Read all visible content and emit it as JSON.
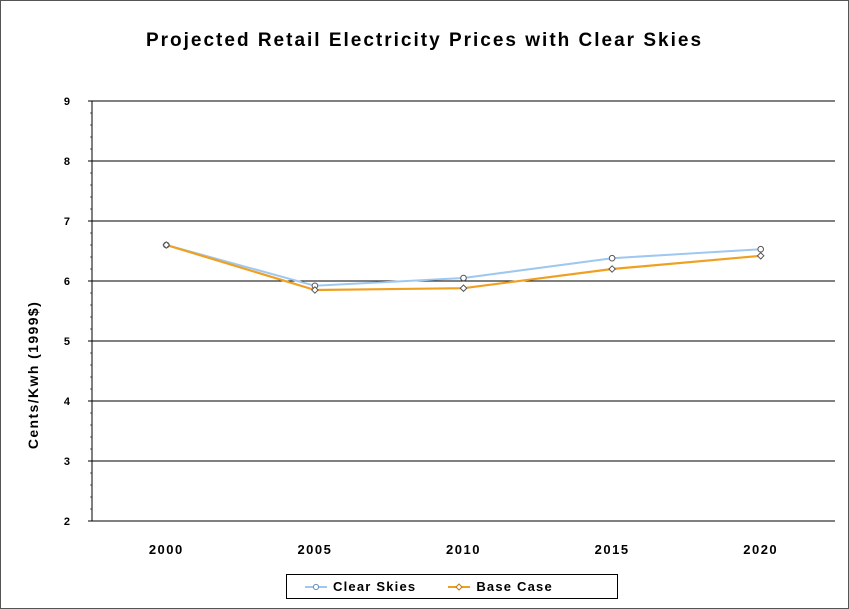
{
  "chart_data": {
    "type": "line",
    "title": "Projected Retail Electricity Prices with Clear Skies",
    "xlabel": "",
    "ylabel": "Cents/Kwh (1999$)",
    "categories": [
      "2000",
      "2005",
      "2010",
      "2015",
      "2020"
    ],
    "ylim": [
      2,
      9
    ],
    "yticks": [
      "2",
      "3",
      "4",
      "5",
      "6",
      "7",
      "8",
      "9"
    ],
    "grid": true,
    "legend_position": "bottom",
    "series": [
      {
        "name": "Clear Skies",
        "values": [
          6.6,
          5.92,
          6.05,
          6.38,
          6.53
        ],
        "color": "#9ec8ef",
        "marker": "circle"
      },
      {
        "name": "Base Case",
        "values": [
          6.6,
          5.85,
          5.88,
          6.2,
          6.42
        ],
        "color": "#f0a020",
        "marker": "diamond"
      }
    ]
  }
}
